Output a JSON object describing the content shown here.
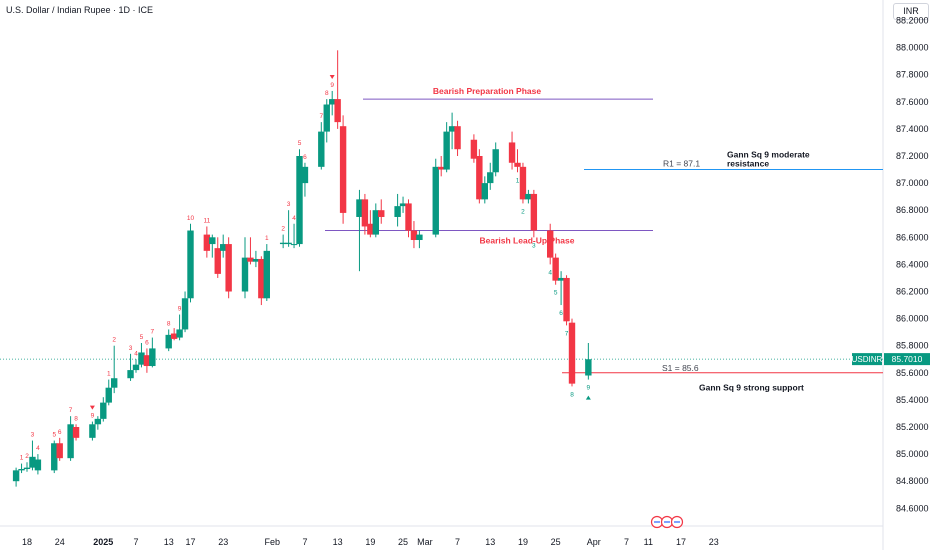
{
  "header": {
    "title": "U.S. Dollar / Indian Rupee · 1D · ICE",
    "currency": "INR"
  },
  "price_tag": {
    "symbol": "USDINR",
    "value": "85.7010"
  },
  "colors": {
    "up": "#089981",
    "down": "#f23645",
    "resistance": "#2196f3",
    "support": "#f23645",
    "phase": "#7e57c2",
    "annotation_red": "#f23645"
  },
  "chart_data": {
    "type": "candlestick",
    "title": "U.S. Dollar / Indian Rupee · 1D · ICE",
    "y_axis": {
      "ticks": [
        "88.2000",
        "88.0000",
        "87.8000",
        "87.6000",
        "87.4000",
        "87.2000",
        "87.0000",
        "86.8000",
        "86.6000",
        "86.4000",
        "86.2000",
        "86.0000",
        "85.8000",
        "85.6000",
        "85.4000",
        "85.2000",
        "85.0000",
        "84.8000",
        "84.6000"
      ],
      "range": [
        84.55,
        88.25
      ]
    },
    "x_axis": {
      "ticks": [
        "18",
        "24",
        "2025",
        "7",
        "13",
        "17",
        "23",
        "Feb",
        "7",
        "13",
        "19",
        "25",
        "Mar",
        "7",
        "13",
        "19",
        "25",
        "Apr",
        "7",
        "11",
        "17",
        "23"
      ]
    },
    "grid": false,
    "last_price": 85.701,
    "candles": [
      {
        "date": "2024-12-16",
        "o": 84.8,
        "h": 84.9,
        "l": 84.76,
        "c": 84.88
      },
      {
        "date": "2024-12-17",
        "o": 84.88,
        "h": 84.93,
        "l": 84.86,
        "c": 84.89
      },
      {
        "date": "2024-12-18",
        "o": 84.89,
        "h": 84.94,
        "l": 84.87,
        "c": 84.9
      },
      {
        "date": "2024-12-19",
        "o": 84.9,
        "h": 85.1,
        "l": 84.88,
        "c": 84.98
      },
      {
        "date": "2024-12-20",
        "o": 84.88,
        "h": 85.0,
        "l": 84.85,
        "c": 84.96
      },
      {
        "date": "2024-12-23",
        "o": 84.88,
        "h": 85.1,
        "l": 84.86,
        "c": 85.08
      },
      {
        "date": "2024-12-24",
        "o": 85.08,
        "h": 85.12,
        "l": 84.95,
        "c": 84.97
      },
      {
        "date": "2024-12-26",
        "o": 84.97,
        "h": 85.28,
        "l": 84.95,
        "c": 85.22
      },
      {
        "date": "2024-12-27",
        "o": 85.2,
        "h": 85.22,
        "l": 85.1,
        "c": 85.12
      },
      {
        "date": "2024-12-30",
        "o": 85.12,
        "h": 85.24,
        "l": 85.1,
        "c": 85.22
      },
      {
        "date": "2024-12-31",
        "o": 85.22,
        "h": 85.28,
        "l": 85.18,
        "c": 85.26
      },
      {
        "date": "2025-01-01",
        "o": 85.26,
        "h": 85.42,
        "l": 85.24,
        "c": 85.38
      },
      {
        "date": "2025-01-02",
        "o": 85.38,
        "h": 85.55,
        "l": 85.36,
        "c": 85.49
      },
      {
        "date": "2025-01-03",
        "o": 85.49,
        "h": 85.8,
        "l": 85.45,
        "c": 85.56
      },
      {
        "date": "2025-01-06",
        "o": 85.56,
        "h": 85.74,
        "l": 85.54,
        "c": 85.62
      },
      {
        "date": "2025-01-07",
        "o": 85.62,
        "h": 85.7,
        "l": 85.6,
        "c": 85.66
      },
      {
        "date": "2025-01-08",
        "o": 85.66,
        "h": 85.82,
        "l": 85.64,
        "c": 85.75
      },
      {
        "date": "2025-01-09",
        "o": 85.73,
        "h": 85.78,
        "l": 85.6,
        "c": 85.65
      },
      {
        "date": "2025-01-10",
        "o": 85.65,
        "h": 85.86,
        "l": 85.64,
        "c": 85.78
      },
      {
        "date": "2025-01-13",
        "o": 85.78,
        "h": 85.92,
        "l": 85.76,
        "c": 85.88
      },
      {
        "date": "2025-01-14",
        "o": 85.89,
        "h": 85.93,
        "l": 85.84,
        "c": 85.85
      },
      {
        "date": "2025-01-15",
        "o": 85.86,
        "h": 86.03,
        "l": 85.84,
        "c": 85.92
      },
      {
        "date": "2025-01-16",
        "o": 85.92,
        "h": 86.2,
        "l": 85.9,
        "c": 86.15
      },
      {
        "date": "2025-01-17",
        "o": 86.15,
        "h": 86.7,
        "l": 86.12,
        "c": 86.65
      },
      {
        "date": "2025-01-20",
        "o": 86.62,
        "h": 86.68,
        "l": 86.45,
        "c": 86.5
      },
      {
        "date": "2025-01-21",
        "o": 86.55,
        "h": 86.62,
        "l": 86.45,
        "c": 86.6
      },
      {
        "date": "2025-01-22",
        "o": 86.52,
        "h": 86.6,
        "l": 86.3,
        "c": 86.33
      },
      {
        "date": "2025-01-23",
        "o": 86.5,
        "h": 86.62,
        "l": 86.45,
        "c": 86.55
      },
      {
        "date": "2025-01-24",
        "o": 86.55,
        "h": 86.6,
        "l": 86.15,
        "c": 86.2
      },
      {
        "date": "2025-01-27",
        "o": 86.2,
        "h": 86.6,
        "l": 86.15,
        "c": 86.45
      },
      {
        "date": "2025-01-28",
        "o": 86.45,
        "h": 86.6,
        "l": 86.4,
        "c": 86.42
      },
      {
        "date": "2025-01-29",
        "o": 86.42,
        "h": 86.5,
        "l": 86.38,
        "c": 86.44
      },
      {
        "date": "2025-01-30",
        "o": 86.44,
        "h": 86.46,
        "l": 86.1,
        "c": 86.15
      },
      {
        "date": "2025-01-31",
        "o": 86.15,
        "h": 86.55,
        "l": 86.13,
        "c": 86.5
      },
      {
        "date": "2025-02-03",
        "o": 86.55,
        "h": 86.62,
        "l": 86.52,
        "c": 86.56
      },
      {
        "date": "2025-02-04",
        "o": 86.55,
        "h": 86.8,
        "l": 86.53,
        "c": 86.56
      },
      {
        "date": "2025-02-05",
        "o": 86.55,
        "h": 86.7,
        "l": 86.52,
        "c": 86.55
      },
      {
        "date": "2025-02-06",
        "o": 86.55,
        "h": 87.25,
        "l": 86.53,
        "c": 87.2
      },
      {
        "date": "2025-02-07",
        "o": 87.0,
        "h": 87.15,
        "l": 86.9,
        "c": 87.12
      },
      {
        "date": "2025-02-10",
        "o": 87.12,
        "h": 87.45,
        "l": 87.1,
        "c": 87.38
      },
      {
        "date": "2025-02-11",
        "o": 87.38,
        "h": 87.62,
        "l": 87.3,
        "c": 87.58
      },
      {
        "date": "2025-02-12",
        "o": 87.58,
        "h": 87.68,
        "l": 87.5,
        "c": 87.62
      },
      {
        "date": "2025-02-13",
        "o": 87.62,
        "h": 87.98,
        "l": 87.4,
        "c": 87.45
      },
      {
        "date": "2025-02-14",
        "o": 87.42,
        "h": 87.5,
        "l": 86.7,
        "c": 86.78
      },
      {
        "date": "2025-02-17",
        "o": 86.75,
        "h": 86.95,
        "l": 86.35,
        "c": 86.88
      },
      {
        "date": "2025-02-18",
        "o": 86.88,
        "h": 86.92,
        "l": 86.62,
        "c": 86.68
      },
      {
        "date": "2025-02-19",
        "o": 86.7,
        "h": 86.8,
        "l": 86.6,
        "c": 86.62
      },
      {
        "date": "2025-02-20",
        "o": 86.62,
        "h": 86.85,
        "l": 86.6,
        "c": 86.8
      },
      {
        "date": "2025-02-21",
        "o": 86.8,
        "h": 86.88,
        "l": 86.7,
        "c": 86.75
      },
      {
        "date": "2025-02-24",
        "o": 86.75,
        "h": 86.92,
        "l": 86.68,
        "c": 86.83
      },
      {
        "date": "2025-02-25",
        "o": 86.83,
        "h": 86.9,
        "l": 86.78,
        "c": 86.85
      },
      {
        "date": "2025-02-26",
        "o": 86.85,
        "h": 86.88,
        "l": 86.6,
        "c": 86.65
      },
      {
        "date": "2025-02-27",
        "o": 86.65,
        "h": 86.72,
        "l": 86.52,
        "c": 86.58
      },
      {
        "date": "2025-02-28",
        "o": 86.58,
        "h": 86.65,
        "l": 86.52,
        "c": 86.62
      },
      {
        "date": "2025-03-03",
        "o": 86.62,
        "h": 87.18,
        "l": 86.6,
        "c": 87.12
      },
      {
        "date": "2025-03-04",
        "o": 87.12,
        "h": 87.2,
        "l": 87.05,
        "c": 87.1
      },
      {
        "date": "2025-03-05",
        "o": 87.1,
        "h": 87.45,
        "l": 87.08,
        "c": 87.38
      },
      {
        "date": "2025-03-06",
        "o": 87.38,
        "h": 87.52,
        "l": 87.25,
        "c": 87.42
      },
      {
        "date": "2025-03-07",
        "o": 87.42,
        "h": 87.46,
        "l": 87.2,
        "c": 87.25
      },
      {
        "date": "2025-03-10",
        "o": 87.32,
        "h": 87.36,
        "l": 87.15,
        "c": 87.18
      },
      {
        "date": "2025-03-11",
        "o": 87.2,
        "h": 87.25,
        "l": 86.85,
        "c": 86.88
      },
      {
        "date": "2025-03-12",
        "o": 86.88,
        "h": 87.05,
        "l": 86.85,
        "c": 87.0
      },
      {
        "date": "2025-03-13",
        "o": 87.0,
        "h": 87.15,
        "l": 86.95,
        "c": 87.08
      },
      {
        "date": "2025-03-14",
        "o": 87.08,
        "h": 87.3,
        "l": 87.05,
        "c": 87.25
      },
      {
        "date": "2025-03-17",
        "o": 87.3,
        "h": 87.38,
        "l": 87.1,
        "c": 87.15
      },
      {
        "date": "2025-03-18",
        "o": 87.15,
        "h": 87.25,
        "l": 87.08,
        "c": 87.12
      },
      {
        "date": "2025-03-19",
        "o": 87.12,
        "h": 87.15,
        "l": 86.85,
        "c": 86.88
      },
      {
        "date": "2025-03-20",
        "o": 86.88,
        "h": 86.95,
        "l": 86.85,
        "c": 86.92
      },
      {
        "date": "2025-03-21",
        "o": 86.92,
        "h": 86.95,
        "l": 86.6,
        "c": 86.65
      },
      {
        "date": "2025-03-24",
        "o": 86.65,
        "h": 86.7,
        "l": 86.4,
        "c": 86.45
      },
      {
        "date": "2025-03-25",
        "o": 86.45,
        "h": 86.48,
        "l": 86.25,
        "c": 86.28
      },
      {
        "date": "2025-03-26",
        "o": 86.28,
        "h": 86.35,
        "l": 86.1,
        "c": 86.3
      },
      {
        "date": "2025-03-27",
        "o": 86.3,
        "h": 86.32,
        "l": 85.95,
        "c": 85.98
      },
      {
        "date": "2025-03-28",
        "o": 85.97,
        "h": 86.0,
        "l": 85.5,
        "c": 85.52
      },
      {
        "date": "2025-03-31",
        "o": 85.58,
        "h": 85.82,
        "l": 85.55,
        "c": 85.7
      }
    ],
    "levels": [
      {
        "name": "R1",
        "label": "R1 = 87.1",
        "value": 87.1,
        "note": "Gann Sq 9 moderate resistance"
      },
      {
        "name": "S1",
        "label": "S1 = 85.6",
        "value": 85.6,
        "note": "Gann Sq 9 strong support"
      }
    ],
    "phases": [
      {
        "label": "Bearish Preparation Phase",
        "value": 87.62
      },
      {
        "label": "Bearish Lead-Up Phase",
        "value": 86.65
      }
    ],
    "td_markers": [
      {
        "text": "1",
        "date": "2024-12-17",
        "pos": "above",
        "color": "red"
      },
      {
        "text": "2",
        "date": "2024-12-18",
        "pos": "above",
        "color": "red"
      },
      {
        "text": "3",
        "date": "2024-12-19",
        "pos": "above",
        "color": "red"
      },
      {
        "text": "4",
        "date": "2024-12-20",
        "pos": "above",
        "color": "red"
      },
      {
        "text": "5",
        "date": "2024-12-23",
        "pos": "above",
        "color": "red"
      },
      {
        "text": "6",
        "date": "2024-12-24",
        "pos": "above",
        "color": "red"
      },
      {
        "text": "7",
        "date": "2024-12-26",
        "pos": "above",
        "color": "red"
      },
      {
        "text": "8",
        "date": "2024-12-27",
        "pos": "above",
        "color": "red"
      },
      {
        "text": "9",
        "date": "2024-12-30",
        "pos": "above",
        "color": "red"
      },
      {
        "text": "1",
        "date": "2025-01-02",
        "pos": "above",
        "color": "red"
      },
      {
        "text": "2",
        "date": "2025-01-03",
        "pos": "above",
        "color": "red"
      },
      {
        "text": "3",
        "date": "2025-01-06",
        "pos": "above",
        "color": "red"
      },
      {
        "text": "4",
        "date": "2025-01-07",
        "pos": "above",
        "color": "red"
      },
      {
        "text": "5",
        "date": "2025-01-08",
        "pos": "above",
        "color": "red"
      },
      {
        "text": "6",
        "date": "2025-01-09",
        "pos": "above",
        "color": "red"
      },
      {
        "text": "7",
        "date": "2025-01-10",
        "pos": "above",
        "color": "red"
      },
      {
        "text": "8",
        "date": "2025-01-13",
        "pos": "above",
        "color": "red"
      },
      {
        "text": "9",
        "date": "2025-01-15",
        "pos": "above",
        "color": "red"
      },
      {
        "text": "10",
        "date": "2025-01-17",
        "pos": "above",
        "color": "red"
      },
      {
        "text": "11",
        "date": "2025-01-20",
        "pos": "above",
        "color": "red"
      },
      {
        "text": "1",
        "date": "2025-01-31",
        "pos": "above",
        "color": "red"
      },
      {
        "text": "2",
        "date": "2025-02-03",
        "pos": "above",
        "color": "red"
      },
      {
        "text": "3",
        "date": "2025-02-04",
        "pos": "above",
        "color": "red"
      },
      {
        "text": "4",
        "date": "2025-02-05",
        "pos": "above",
        "color": "red"
      },
      {
        "text": "5",
        "date": "2025-02-06",
        "pos": "above",
        "color": "red"
      },
      {
        "text": "6",
        "date": "2025-02-07",
        "pos": "above",
        "color": "red"
      },
      {
        "text": "7",
        "date": "2025-02-10",
        "pos": "above",
        "color": "red"
      },
      {
        "text": "8",
        "date": "2025-02-11",
        "pos": "above",
        "color": "red"
      },
      {
        "text": "9",
        "date": "2025-02-12",
        "pos": "above",
        "color": "red"
      },
      {
        "text": "1",
        "date": "2025-03-18",
        "pos": "below",
        "color": "green"
      },
      {
        "text": "2",
        "date": "2025-03-19",
        "pos": "below",
        "color": "green"
      },
      {
        "text": "3",
        "date": "2025-03-21",
        "pos": "below",
        "color": "green"
      },
      {
        "text": "4",
        "date": "2025-03-24",
        "pos": "below",
        "color": "green"
      },
      {
        "text": "5",
        "date": "2025-03-25",
        "pos": "below",
        "color": "green"
      },
      {
        "text": "6",
        "date": "2025-03-26",
        "pos": "below",
        "color": "green"
      },
      {
        "text": "7",
        "date": "2025-03-27",
        "pos": "below",
        "color": "green"
      },
      {
        "text": "8",
        "date": "2025-03-28",
        "pos": "below",
        "color": "green"
      },
      {
        "text": "9",
        "date": "2025-03-31",
        "pos": "below",
        "color": "green"
      }
    ]
  }
}
